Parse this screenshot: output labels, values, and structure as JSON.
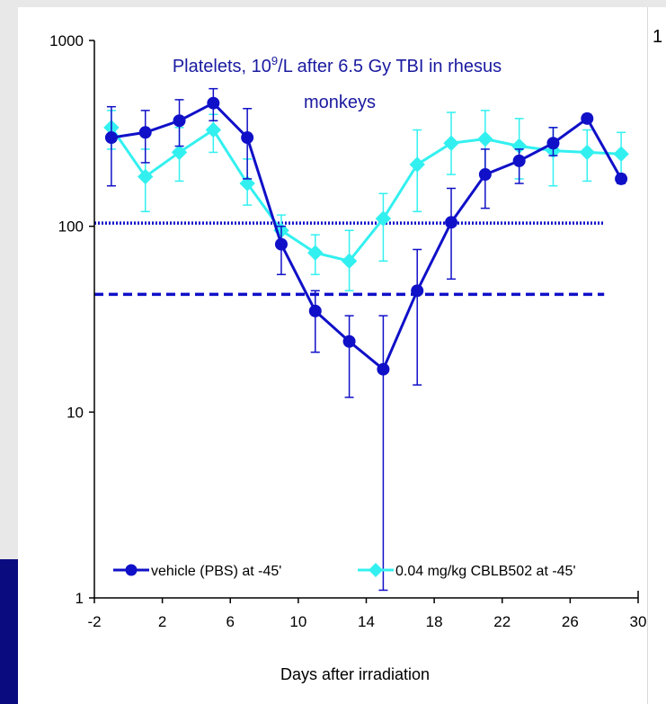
{
  "chart_data": {
    "type": "line",
    "title_line1_prefix": "Platelets, 10",
    "title_superscript": "9",
    "title_line1_suffix": "/L after 6.5 Gy TBI in rhesus",
    "title_line2": "monkeys",
    "xlabel": "Days after irradiation",
    "ylabel": "",
    "x_ticks": [
      -2,
      2,
      6,
      10,
      14,
      18,
      22,
      26,
      30
    ],
    "y_ticks": [
      1,
      10,
      100,
      1000
    ],
    "xlim": [
      -2,
      30
    ],
    "ylim": [
      1,
      1000
    ],
    "y_scale": "log",
    "grid": false,
    "legend_position": "bottom",
    "series": [
      {
        "name": "vehicle (PBS) at -45'",
        "color": "#1010c8",
        "marker": "circle",
        "x": [
          -1,
          1,
          3,
          5,
          7,
          9,
          11,
          13,
          15,
          17,
          19,
          21,
          23,
          25,
          27,
          29
        ],
        "y": [
          300,
          320,
          370,
          460,
          300,
          80,
          35,
          24,
          17,
          45,
          105,
          190,
          225,
          280,
          380,
          180
        ],
        "error_high": [
          440,
          420,
          480,
          550,
          430,
          100,
          45,
          33,
          33,
          75,
          160,
          260,
          260,
          340,
          400,
          190
        ],
        "error_low": [
          165,
          220,
          270,
          370,
          180,
          55,
          21,
          12,
          1.1,
          14,
          52,
          125,
          170,
          240,
          360,
          170
        ]
      },
      {
        "name": "0.04 mg/kg CBLB502 at -45'",
        "color": "#33f0f0",
        "marker": "diamond",
        "x": [
          -1,
          1,
          3,
          5,
          7,
          9,
          11,
          13,
          15,
          17,
          19,
          21,
          23,
          25,
          27,
          29
        ],
        "y": [
          340,
          185,
          250,
          330,
          170,
          95,
          72,
          65,
          110,
          215,
          280,
          295,
          270,
          255,
          250,
          245
        ],
        "error_high": [
          420,
          260,
          340,
          400,
          230,
          115,
          90,
          95,
          150,
          330,
          410,
          420,
          380,
          340,
          330,
          320
        ],
        "error_low": [
          260,
          120,
          175,
          250,
          130,
          80,
          55,
          45,
          65,
          120,
          190,
          200,
          180,
          165,
          175,
          175
        ]
      }
    ],
    "reference_lines": [
      {
        "style": "dotted",
        "y": 104,
        "x_start": -2,
        "x_end": 28
      },
      {
        "style": "dashed",
        "y": 43,
        "x_start": -2,
        "x_end": 28
      }
    ]
  },
  "overflow_label": "1",
  "colors": {
    "navy_bar": "#0b0b80",
    "reference_line": "#1010c8",
    "axis": "#000000",
    "title": "#1a1aa0"
  }
}
